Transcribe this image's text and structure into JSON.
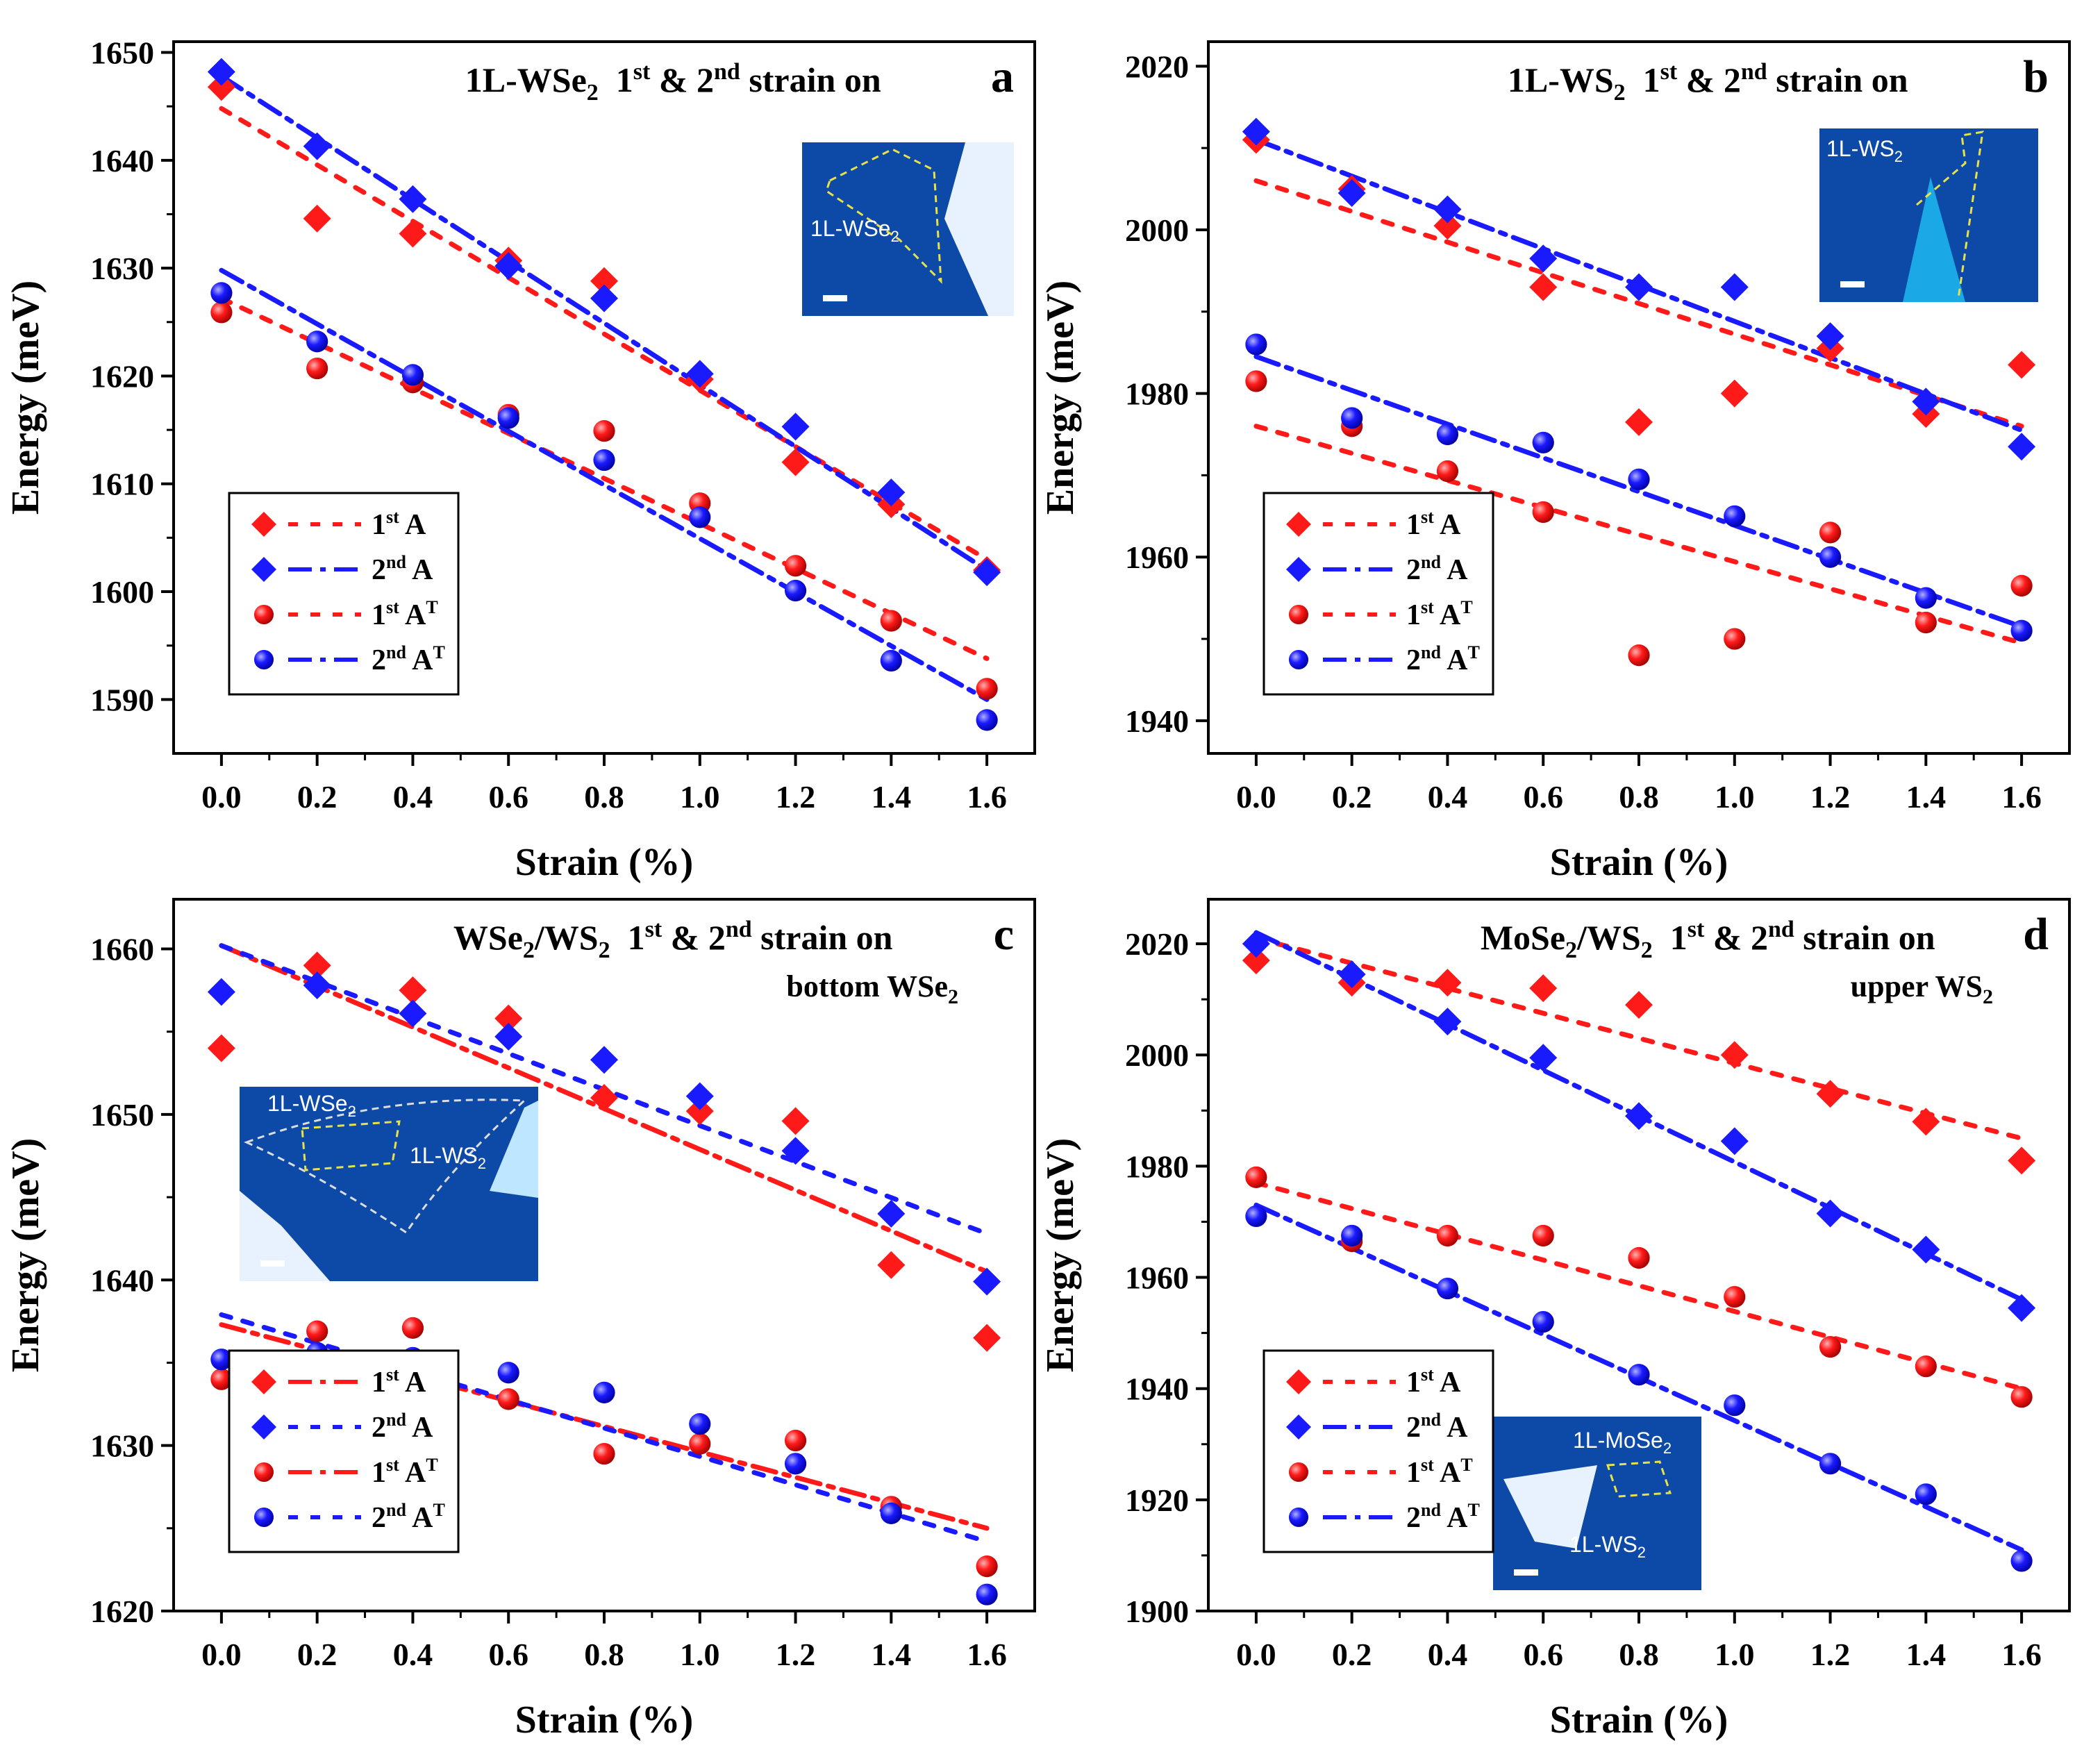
{
  "colors": {
    "red": "#ff1a1a",
    "blue": "#1a1aff",
    "axis": "#000000",
    "inset_bg": "#0d4aa8",
    "inset_flake": "#e8f2ff",
    "inset_outline": "#e8e24a"
  },
  "chart_data": [
    {
      "panel": "a",
      "type": "scatter",
      "title": "1L-WSe₂ 1st & 2nd strain on",
      "title_parts": {
        "material": "1L-WSe",
        "material_sub": "2",
        "first": "1",
        "first_sup": "st",
        "amp": "&",
        "second": "2",
        "second_sup": "nd",
        "suffix": "strain on",
        "line2_main": "",
        "line2_sub": ""
      },
      "panel_label": "a",
      "xlabel": "Strain (%)",
      "ylabel": "Energy (meV)",
      "xlim": [
        -0.1,
        1.7
      ],
      "ylim": [
        1585,
        1651
      ],
      "xticks": [
        0.0,
        0.2,
        0.4,
        0.6,
        0.8,
        1.0,
        1.2,
        1.4,
        1.6
      ],
      "xtick_labels": [
        "0.0",
        "0.2",
        "0.4",
        "0.6",
        "0.8",
        "1.0",
        "1.2",
        "1.4",
        "1.6"
      ],
      "yticks": [
        1590,
        1600,
        1610,
        1620,
        1630,
        1640,
        1650
      ],
      "ytick_labels": [
        "1590",
        "1600",
        "1610",
        "1620",
        "1630",
        "1640",
        "1650"
      ],
      "legend_position": "bottom-left",
      "x": [
        0.0,
        0.2,
        0.4,
        0.6,
        0.8,
        1.0,
        1.2,
        1.4,
        1.6
      ],
      "series": [
        {
          "name": "1st A",
          "legend_main": "1",
          "legend_sup": "st",
          "legend_label": "A",
          "legend_label_sup": "",
          "color": "red",
          "marker": "diamond",
          "line": "dot",
          "values": [
            1646.8,
            1634.6,
            1633.2,
            1630.7,
            1628.8,
            1619.7,
            1612.0,
            1608.1,
            1602.0
          ],
          "fit": [
            1644.8,
            1603.0
          ]
        },
        {
          "name": "2nd A",
          "legend_main": "2",
          "legend_sup": "nd",
          "legend_label": "A",
          "legend_label_sup": "",
          "color": "blue",
          "marker": "diamond",
          "line": "dashdot",
          "values": [
            1648.2,
            1641.3,
            1636.4,
            1630.2,
            1627.2,
            1620.2,
            1615.3,
            1609.2,
            1601.8
          ],
          "fit": [
            1647.8,
            1602.0
          ]
        },
        {
          "name": "1st A^T",
          "legend_main": "1",
          "legend_sup": "st",
          "legend_label": "A",
          "legend_label_sup": "T",
          "color": "red",
          "marker": "sphere",
          "line": "dot",
          "values": [
            1625.9,
            1620.7,
            1619.4,
            1616.4,
            1614.9,
            1608.2,
            1602.4,
            1597.3,
            1591.0
          ],
          "fit": [
            1627.2,
            1593.8
          ]
        },
        {
          "name": "2nd A^T",
          "legend_main": "2",
          "legend_sup": "nd",
          "legend_label": "A",
          "legend_label_sup": "T",
          "color": "blue",
          "marker": "sphere",
          "line": "dashdot",
          "values": [
            1627.7,
            1623.2,
            1620.1,
            1616.1,
            1612.2,
            1606.9,
            1600.1,
            1593.6,
            1588.1
          ],
          "fit": [
            1629.8,
            1590.0
          ]
        }
      ],
      "inset": {
        "labels": [
          {
            "main": "1L-WSe",
            "sub": "2"
          }
        ]
      }
    },
    {
      "panel": "b",
      "type": "scatter",
      "title": "1L-WS₂ 1st & 2nd strain on",
      "title_parts": {
        "material": "1L-WS",
        "material_sub": "2",
        "first": "1",
        "first_sup": "st",
        "amp": "&",
        "second": "2",
        "second_sup": "nd",
        "suffix": "strain on",
        "line2_main": "",
        "line2_sub": ""
      },
      "panel_label": "b",
      "xlabel": "Strain (%)",
      "ylabel": "Energy (meV)",
      "xlim": [
        -0.1,
        1.7
      ],
      "ylim": [
        1936,
        2023
      ],
      "xticks": [
        0.0,
        0.2,
        0.4,
        0.6,
        0.8,
        1.0,
        1.2,
        1.4,
        1.6
      ],
      "xtick_labels": [
        "0.0",
        "0.2",
        "0.4",
        "0.6",
        "0.8",
        "1.0",
        "1.2",
        "1.4",
        "1.6"
      ],
      "yticks": [
        1940,
        1960,
        1980,
        2000,
        2020
      ],
      "ytick_labels": [
        "1940",
        "1960",
        "1980",
        "2000",
        "2020"
      ],
      "legend_position": "bottom-left",
      "x": [
        0.0,
        0.2,
        0.4,
        0.6,
        0.8,
        1.0,
        1.2,
        1.4,
        1.6
      ],
      "series": [
        {
          "name": "1st A",
          "legend_main": "1",
          "legend_sup": "st",
          "legend_label": "A",
          "legend_label_sup": "",
          "color": "red",
          "marker": "diamond",
          "line": "dot",
          "values": [
            2011.0,
            2005.0,
            2000.5,
            1993.0,
            1976.5,
            1980.0,
            1985.5,
            1977.5,
            1983.5
          ],
          "fit": [
            2006.0,
            1976.0
          ]
        },
        {
          "name": "2nd A",
          "legend_main": "2",
          "legend_sup": "nd",
          "legend_label": "A",
          "legend_label_sup": "",
          "color": "blue",
          "marker": "diamond",
          "line": "dashdot",
          "values": [
            2012.0,
            2004.5,
            2002.5,
            1996.5,
            1993.0,
            1993.0,
            1987.0,
            1979.0,
            1973.5
          ],
          "fit": [
            2011.0,
            1975.5
          ]
        },
        {
          "name": "1st A^T",
          "legend_main": "1",
          "legend_sup": "st",
          "legend_label": "A",
          "legend_label_sup": "T",
          "color": "red",
          "marker": "sphere",
          "line": "dot",
          "values": [
            1981.5,
            1976.0,
            1970.5,
            1965.5,
            1948.0,
            1950.0,
            1963.0,
            1952.0,
            1956.5
          ],
          "fit": [
            1976.0,
            1949.5
          ]
        },
        {
          "name": "2nd A^T",
          "legend_main": "2",
          "legend_sup": "nd",
          "legend_label": "A",
          "legend_label_sup": "T",
          "color": "blue",
          "marker": "sphere",
          "line": "dashdot",
          "values": [
            1986.0,
            1977.0,
            1975.0,
            1974.0,
            1969.5,
            1965.0,
            1960.0,
            1955.0,
            1951.0
          ],
          "fit": [
            1984.5,
            1951.5
          ]
        }
      ],
      "inset": {
        "labels": [
          {
            "main": "1L-WS",
            "sub": "2"
          }
        ]
      }
    },
    {
      "panel": "c",
      "type": "scatter",
      "title": "WSe₂/WS₂ 1st & 2nd strain on bottom WSe₂",
      "title_parts": {
        "material": "WSe",
        "material_sub": "2",
        "material2": "/WS",
        "material2_sub": "2",
        "first": "1",
        "first_sup": "st",
        "amp": "&",
        "second": "2",
        "second_sup": "nd",
        "suffix": "strain on",
        "line2_main": "bottom WSe",
        "line2_sub": "2"
      },
      "panel_label": "c",
      "xlabel": "Strain (%)",
      "ylabel": "Energy (meV)",
      "xlim": [
        -0.1,
        1.7
      ],
      "ylim": [
        1620,
        1663
      ],
      "xticks": [
        0.0,
        0.2,
        0.4,
        0.6,
        0.8,
        1.0,
        1.2,
        1.4,
        1.6
      ],
      "xtick_labels": [
        "0.0",
        "0.2",
        "0.4",
        "0.6",
        "0.8",
        "1.0",
        "1.2",
        "1.4",
        "1.6"
      ],
      "yticks": [
        1620,
        1630,
        1640,
        1650,
        1660
      ],
      "ytick_labels": [
        "1620",
        "1630",
        "1640",
        "1650",
        "1660"
      ],
      "legend_position": "bottom-left",
      "x": [
        0.0,
        0.2,
        0.4,
        0.6,
        0.8,
        1.0,
        1.2,
        1.4,
        1.6
      ],
      "series": [
        {
          "name": "1st A",
          "legend_main": "1",
          "legend_sup": "st",
          "legend_label": "A",
          "legend_label_sup": "",
          "color": "red",
          "marker": "diamond",
          "line": "dashdot",
          "values": [
            1654.0,
            1659.0,
            1657.5,
            1655.8,
            1651.0,
            1650.2,
            1649.6,
            1640.9,
            1636.5
          ],
          "fit": [
            1660.2,
            1640.5
          ]
        },
        {
          "name": "2nd A",
          "legend_main": "2",
          "legend_sup": "nd",
          "legend_label": "A",
          "legend_label_sup": "",
          "color": "blue",
          "marker": "diamond",
          "line": "dot",
          "values": [
            1657.4,
            1657.8,
            1656.1,
            1654.7,
            1653.3,
            1651.1,
            1647.8,
            1644.0,
            1639.9
          ],
          "fit": [
            1660.2,
            1642.8
          ]
        },
        {
          "name": "1st A^T",
          "legend_main": "1",
          "legend_sup": "st",
          "legend_label": "A",
          "legend_label_sup": "T",
          "color": "red",
          "marker": "sphere",
          "line": "dashdot",
          "values": [
            1634.0,
            1636.9,
            1637.1,
            1632.8,
            1629.5,
            1630.1,
            1630.3,
            1626.3,
            1622.7
          ],
          "fit": [
            1637.3,
            1625.0
          ]
        },
        {
          "name": "2nd A^T",
          "legend_main": "2",
          "legend_sup": "nd",
          "legend_label": "A",
          "legend_label_sup": "T",
          "color": "blue",
          "marker": "sphere",
          "line": "dot",
          "values": [
            1635.2,
            1635.6,
            1635.3,
            1634.4,
            1633.2,
            1631.3,
            1628.9,
            1625.9,
            1621.0
          ],
          "fit": [
            1637.9,
            1624.2
          ]
        }
      ],
      "inset": {
        "labels": [
          {
            "main": "1L-WSe",
            "sub": "2"
          },
          {
            "main": "1L-WS",
            "sub": "2"
          }
        ]
      }
    },
    {
      "panel": "d",
      "type": "scatter",
      "title": "MoSe₂/WS₂ 1st & 2nd strain on upper WS₂",
      "title_parts": {
        "material": "MoSe",
        "material_sub": "2",
        "material2": "/WS",
        "material2_sub": "2",
        "first": "1",
        "first_sup": "st",
        "amp": "&",
        "second": "2",
        "second_sup": "nd",
        "suffix": "strain on",
        "line2_main": "upper WS",
        "line2_sub": "2"
      },
      "panel_label": "d",
      "xlabel": "Strain (%)",
      "ylabel": "Energy (meV)",
      "xlim": [
        -0.1,
        1.7
      ],
      "ylim": [
        1900,
        2028
      ],
      "xticks": [
        0.0,
        0.2,
        0.4,
        0.6,
        0.8,
        1.0,
        1.2,
        1.4,
        1.6
      ],
      "xtick_labels": [
        "0.0",
        "0.2",
        "0.4",
        "0.6",
        "0.8",
        "1.0",
        "1.2",
        "1.4",
        "1.6"
      ],
      "yticks": [
        1900,
        1920,
        1940,
        1960,
        1980,
        2000,
        2020
      ],
      "ytick_labels": [
        "1900",
        "1920",
        "1940",
        "1960",
        "1980",
        "2000",
        "2020"
      ],
      "legend_position": "bottom-left",
      "x": [
        0.0,
        0.2,
        0.4,
        0.6,
        0.8,
        1.0,
        1.2,
        1.4,
        1.6
      ],
      "series": [
        {
          "name": "1st A",
          "legend_main": "1",
          "legend_sup": "st",
          "legend_label": "A",
          "legend_label_sup": "",
          "color": "red",
          "marker": "diamond",
          "line": "dot",
          "values": [
            2017.0,
            2013.0,
            2013.0,
            2012.0,
            2009.0,
            2000.0,
            1993.0,
            1988.0,
            1981.0
          ],
          "fit": [
            2021.0,
            1985.0
          ]
        },
        {
          "name": "2nd A",
          "legend_main": "2",
          "legend_sup": "nd",
          "legend_label": "A",
          "legend_label_sup": "",
          "color": "blue",
          "marker": "diamond",
          "line": "dashdot",
          "values": [
            2020.0,
            2014.5,
            2006.0,
            1999.5,
            1989.0,
            1984.5,
            1971.5,
            1965.0,
            1954.5
          ],
          "fit": [
            2022.0,
            1956.0
          ]
        },
        {
          "name": "1st A^T",
          "legend_main": "1",
          "legend_sup": "st",
          "legend_label": "A",
          "legend_label_sup": "T",
          "color": "red",
          "marker": "sphere",
          "line": "dot",
          "values": [
            1978.0,
            1966.5,
            1967.5,
            1967.5,
            1963.5,
            1956.5,
            1947.5,
            1944.0,
            1938.5
          ],
          "fit": [
            1977.0,
            1940.0
          ]
        },
        {
          "name": "2nd A^T",
          "legend_main": "2",
          "legend_sup": "nd",
          "legend_label": "A",
          "legend_label_sup": "T",
          "color": "blue",
          "marker": "sphere",
          "line": "dashdot",
          "values": [
            1971.0,
            1967.5,
            1958.0,
            1952.0,
            1942.5,
            1937.0,
            1926.5,
            1921.0,
            1909.0
          ],
          "fit": [
            1973.0,
            1911.0
          ]
        }
      ],
      "inset": {
        "labels": [
          {
            "main": "1L-MoSe",
            "sub": "2"
          },
          {
            "main": "1L-WS",
            "sub": "2"
          }
        ]
      }
    }
  ]
}
